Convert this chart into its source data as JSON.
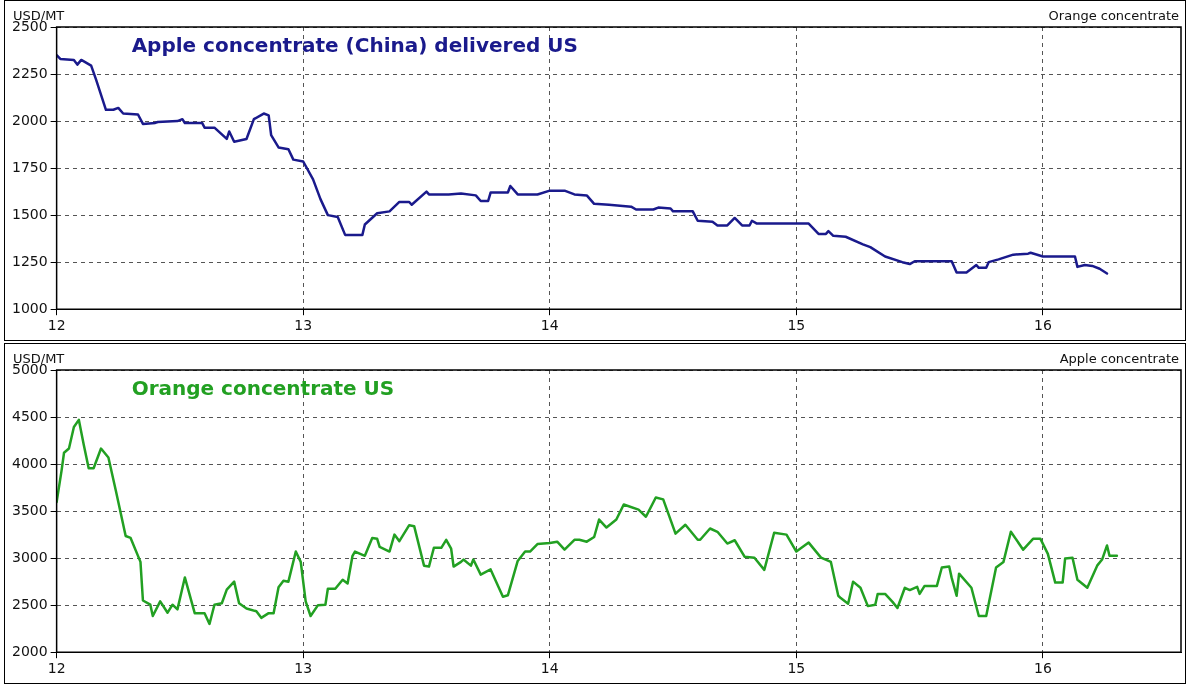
{
  "chart_data": [
    {
      "type": "line",
      "ylabel": "USD/MT",
      "annotations": [
        "Orange concentrate"
      ],
      "xlim": [
        12,
        16.56
      ],
      "xticks": [
        12,
        13,
        14,
        15,
        16
      ],
      "ylim": [
        1000,
        2500
      ],
      "yticks": [
        1000,
        1250,
        1500,
        1750,
        2000,
        2250,
        2500
      ],
      "grid": true,
      "legend": false,
      "marker": "none",
      "line_style": "solid",
      "series": [
        {
          "name": "Apple concentrate (China) delivered US",
          "color": "#1a1a8c",
          "x": [
            12.0,
            12.015,
            12.07,
            12.084,
            12.1,
            12.14,
            12.16,
            12.2,
            12.23,
            12.25,
            12.27,
            12.33,
            12.35,
            12.4,
            12.41,
            12.49,
            12.51,
            12.52,
            12.59,
            12.6,
            12.64,
            12.69,
            12.7,
            12.72,
            12.77,
            12.8,
            12.84,
            12.86,
            12.87,
            12.9,
            12.94,
            12.96,
            13.0,
            13.04,
            13.07,
            13.1,
            13.14,
            13.17,
            13.24,
            13.25,
            13.3,
            13.35,
            13.39,
            13.43,
            13.44,
            13.5,
            13.51,
            13.59,
            13.64,
            13.7,
            13.72,
            13.75,
            13.76,
            13.83,
            13.84,
            13.87,
            13.95,
            14.0,
            14.06,
            14.1,
            14.15,
            14.18,
            14.24,
            14.33,
            14.35,
            14.42,
            14.44,
            14.49,
            14.5,
            14.58,
            14.6,
            14.66,
            14.68,
            14.72,
            14.75,
            14.78,
            14.81,
            14.82,
            14.84,
            14.87,
            15.05,
            15.09,
            15.12,
            15.13,
            15.15,
            15.2,
            15.27,
            15.3,
            15.36,
            15.43,
            15.46,
            15.48,
            15.63,
            15.65,
            15.69,
            15.73,
            15.74,
            15.77,
            15.78,
            15.82,
            15.88,
            15.94,
            15.95,
            16.0,
            16.13,
            16.14,
            16.17,
            16.2,
            16.23,
            16.26
          ],
          "values": [
            2350,
            2330,
            2325,
            2300,
            2325,
            2295,
            2220,
            2060,
            2060,
            2070,
            2040,
            2035,
            1985,
            1990,
            1995,
            2000,
            2010,
            1990,
            1990,
            1965,
            1965,
            1905,
            1945,
            1890,
            1905,
            2010,
            2040,
            2030,
            1925,
            1860,
            1850,
            1795,
            1785,
            1690,
            1585,
            1500,
            1490,
            1395,
            1395,
            1450,
            1510,
            1520,
            1570,
            1570,
            1555,
            1625,
            1610,
            1610,
            1615,
            1605,
            1575,
            1575,
            1620,
            1620,
            1655,
            1610,
            1610,
            1630,
            1630,
            1610,
            1605,
            1560,
            1555,
            1545,
            1530,
            1530,
            1540,
            1535,
            1520,
            1520,
            1470,
            1465,
            1445,
            1445,
            1485,
            1445,
            1445,
            1470,
            1455,
            1455,
            1455,
            1400,
            1400,
            1415,
            1390,
            1385,
            1345,
            1330,
            1280,
            1250,
            1240,
            1255,
            1255,
            1195,
            1195,
            1235,
            1220,
            1220,
            1250,
            1265,
            1290,
            1295,
            1300,
            1280,
            1280,
            1225,
            1235,
            1230,
            1215,
            1190
          ]
        }
      ]
    },
    {
      "type": "line",
      "ylabel": "USD/MT",
      "annotations": [
        "Apple concentrate"
      ],
      "xlim": [
        12,
        16.56
      ],
      "xticks": [
        12,
        13,
        14,
        15,
        16
      ],
      "ylim": [
        2000,
        5000
      ],
      "yticks": [
        2000,
        2500,
        3000,
        3500,
        4000,
        4500,
        5000
      ],
      "grid": true,
      "legend": false,
      "marker": "none",
      "line_style": "solid",
      "series": [
        {
          "name": "Orange concentrate US",
          "color": "#22a022",
          "x": [
            12.0,
            12.02,
            12.03,
            12.05,
            12.07,
            12.09,
            12.11,
            12.13,
            12.15,
            12.18,
            12.21,
            12.24,
            12.28,
            12.3,
            12.34,
            12.35,
            12.38,
            12.39,
            12.42,
            12.45,
            12.47,
            12.49,
            12.52,
            12.56,
            12.6,
            12.62,
            12.64,
            12.67,
            12.69,
            12.72,
            12.74,
            12.77,
            12.81,
            12.83,
            12.86,
            12.88,
            12.9,
            12.92,
            12.94,
            12.97,
            12.99,
            13.01,
            13.03,
            13.06,
            13.09,
            13.1,
            13.13,
            13.16,
            13.18,
            13.2,
            13.21,
            13.25,
            13.28,
            13.3,
            13.31,
            13.35,
            13.37,
            13.39,
            13.43,
            13.45,
            13.49,
            13.51,
            13.53,
            13.56,
            13.58,
            13.6,
            13.61,
            13.64,
            13.65,
            13.68,
            13.69,
            13.72,
            13.76,
            13.81,
            13.83,
            13.87,
            13.9,
            13.92,
            13.95,
            14.0,
            14.03,
            14.06,
            14.1,
            14.12,
            14.15,
            14.18,
            14.2,
            14.23,
            14.27,
            14.3,
            14.36,
            14.39,
            14.43,
            14.46,
            14.51,
            14.55,
            14.6,
            14.61,
            14.65,
            14.68,
            14.72,
            14.75,
            14.79,
            14.83,
            14.87,
            14.91,
            14.96,
            15.0,
            15.05,
            15.1,
            15.14,
            15.17,
            15.18,
            15.21,
            15.23,
            15.26,
            15.29,
            15.32,
            15.33,
            15.36,
            15.39,
            15.41,
            15.44,
            15.46,
            15.49,
            15.5,
            15.52,
            15.57,
            15.59,
            15.62,
            15.63,
            15.65,
            15.66,
            15.71,
            15.74,
            15.77,
            15.81,
            15.84,
            15.87,
            15.92,
            15.96,
            15.99,
            16.02,
            16.05,
            16.08,
            16.09,
            16.12,
            16.14,
            16.18,
            16.22,
            16.24,
            16.26,
            16.27,
            16.3
          ],
          "values": [
            3595,
            3930,
            4120,
            4165,
            4395,
            4470,
            4205,
            3955,
            3955,
            4165,
            4070,
            3720,
            3235,
            3215,
            2960,
            2550,
            2505,
            2385,
            2540,
            2420,
            2505,
            2455,
            2795,
            2415,
            2415,
            2300,
            2505,
            2520,
            2665,
            2750,
            2520,
            2465,
            2435,
            2365,
            2415,
            2415,
            2690,
            2760,
            2750,
            3070,
            2960,
            2540,
            2385,
            2500,
            2505,
            2675,
            2675,
            2770,
            2730,
            3025,
            3070,
            3025,
            3215,
            3205,
            3120,
            3070,
            3250,
            3180,
            3350,
            3340,
            2920,
            2910,
            3110,
            3110,
            3195,
            3100,
            2910,
            2960,
            2985,
            2920,
            2985,
            2825,
            2880,
            2590,
            2605,
            2970,
            3070,
            3070,
            3150,
            3160,
            3175,
            3090,
            3195,
            3195,
            3175,
            3225,
            3410,
            3325,
            3410,
            3570,
            3515,
            3440,
            3645,
            3625,
            3260,
            3355,
            3195,
            3195,
            3315,
            3280,
            3155,
            3190,
            3015,
            3005,
            2875,
            3270,
            3250,
            3070,
            3165,
            3005,
            2960,
            2600,
            2575,
            2515,
            2750,
            2685,
            2490,
            2505,
            2620,
            2620,
            2535,
            2470,
            2685,
            2660,
            2695,
            2620,
            2705,
            2705,
            2900,
            2910,
            2790,
            2600,
            2835,
            2685,
            2385,
            2385,
            2900,
            2960,
            3280,
            3090,
            3205,
            3205,
            3045,
            2740,
            2740,
            2995,
            3005,
            2770,
            2685,
            2920,
            2985,
            3135,
            3025,
            3025
          ]
        }
      ]
    }
  ]
}
